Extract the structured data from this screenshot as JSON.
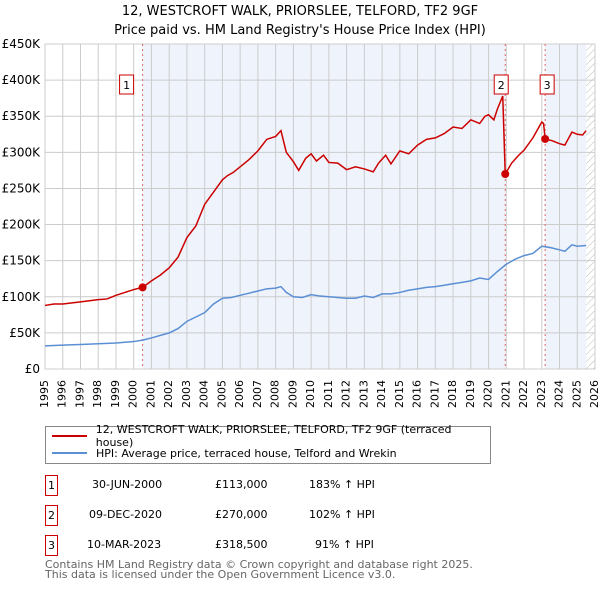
{
  "title": "12, WESTCROFT WALK, PRIORSLEE, TELFORD, TF2 9GF",
  "subtitle": "Price paid vs. HM Land Registry's House Price Index (HPI)",
  "chart_data": {
    "type": "line",
    "xlim": [
      1995,
      2026
    ],
    "ylim": [
      0,
      450000
    ],
    "yticks": [
      0,
      50000,
      100000,
      150000,
      200000,
      250000,
      300000,
      350000,
      400000,
      450000
    ],
    "ytick_labels": [
      "£0",
      "£50K",
      "£100K",
      "£150K",
      "£200K",
      "£250K",
      "£300K",
      "£350K",
      "£400K",
      "£450K"
    ],
    "xticks": [
      1995,
      1996,
      1997,
      1998,
      1999,
      2000,
      2001,
      2002,
      2003,
      2004,
      2005,
      2006,
      2007,
      2008,
      2009,
      2010,
      2011,
      2012,
      2013,
      2014,
      2015,
      2016,
      2017,
      2018,
      2019,
      2020,
      2021,
      2022,
      2023,
      2024,
      2025,
      2026
    ],
    "grid": true,
    "shaded_ranges": [
      [
        2000.5,
        2020.94
      ],
      [
        2023.19,
        2025.5
      ]
    ],
    "hatched_from": 2025.5,
    "series": [
      {
        "name": "12, WESTCROFT WALK, PRIORSLEE, TELFORD, TF2 9GF (terraced house)",
        "color": "#cc0000",
        "x": [
          1995,
          1995.5,
          1996,
          1997,
          1998,
          1998.5,
          1999,
          1999.5,
          2000,
          2000.5,
          2001,
          2001.5,
          2002,
          2002.5,
          2003,
          2003.5,
          2004,
          2004.5,
          2005,
          2005.3,
          2005.6,
          2006,
          2006.5,
          2007,
          2007.5,
          2008,
          2008.3,
          2008.6,
          2009,
          2009.3,
          2009.7,
          2010,
          2010.3,
          2010.7,
          2011,
          2011.5,
          2012,
          2012.5,
          2013,
          2013.5,
          2013.8,
          2014.2,
          2014.5,
          2015,
          2015.5,
          2016,
          2016.5,
          2017,
          2017.5,
          2018,
          2018.5,
          2019,
          2019.5,
          2019.8,
          2020,
          2020.3,
          2020.5,
          2020.8,
          2020.94,
          2021.3,
          2021.7,
          2022,
          2022.5,
          2023,
          2023.1,
          2023.19,
          2023.6,
          2024,
          2024.3,
          2024.7,
          2025,
          2025.3,
          2025.5
        ],
        "values": [
          88000,
          90000,
          90000,
          93000,
          96000,
          97000,
          102000,
          106000,
          110000,
          113000,
          122000,
          130000,
          140000,
          155000,
          182000,
          198000,
          228000,
          245000,
          262000,
          268000,
          272000,
          280000,
          290000,
          302000,
          318000,
          322000,
          330000,
          300000,
          287000,
          275000,
          292000,
          298000,
          288000,
          296000,
          286000,
          285000,
          276000,
          280000,
          277000,
          273000,
          285000,
          296000,
          284000,
          302000,
          298000,
          310000,
          318000,
          320000,
          326000,
          335000,
          333000,
          345000,
          340000,
          350000,
          352000,
          345000,
          360000,
          378000,
          270000,
          285000,
          296000,
          303000,
          320000,
          342000,
          340000,
          318500,
          316000,
          312000,
          310000,
          328000,
          325000,
          324000,
          330000
        ]
      },
      {
        "name": "HPI: Average price, terraced house, Telford and Wrekin",
        "color": "#5b8fd4",
        "x": [
          1995,
          1996,
          1997,
          1998,
          1999,
          2000,
          2000.5,
          2001,
          2002,
          2002.5,
          2003,
          2003.5,
          2004,
          2004.5,
          2005,
          2005.5,
          2006,
          2006.5,
          2007,
          2007.5,
          2008,
          2008.3,
          2008.6,
          2009,
          2009.5,
          2010,
          2010.5,
          2011,
          2011.5,
          2012,
          2012.5,
          2013,
          2013.5,
          2014,
          2014.5,
          2015,
          2015.5,
          2016,
          2016.5,
          2017,
          2017.5,
          2018,
          2018.5,
          2019,
          2019.5,
          2020,
          2020.5,
          2021,
          2021.5,
          2022,
          2022.5,
          2023,
          2023.5,
          2024,
          2024.3,
          2024.7,
          2025,
          2025.5
        ],
        "values": [
          32000,
          33000,
          34000,
          35000,
          36000,
          38000,
          40000,
          43000,
          50000,
          56000,
          66000,
          72000,
          78000,
          90000,
          98000,
          99000,
          102000,
          105000,
          108000,
          111000,
          112000,
          114000,
          106000,
          100000,
          99000,
          103000,
          101000,
          100000,
          99000,
          98000,
          98000,
          101000,
          99000,
          104000,
          104000,
          106000,
          109000,
          111000,
          113000,
          114000,
          116000,
          118000,
          120000,
          122000,
          126000,
          124000,
          135000,
          145000,
          152000,
          157000,
          160000,
          170000,
          168000,
          165000,
          163000,
          172000,
          170000,
          171000
        ]
      }
    ],
    "markers": [
      {
        "label": "1",
        "x": 2000.5,
        "y": 113000
      },
      {
        "label": "2",
        "x": 2020.94,
        "y": 270000
      },
      {
        "label": "3",
        "x": 2023.19,
        "y": 318500
      }
    ]
  },
  "legend": [
    {
      "label": "12, WESTCROFT WALK, PRIORSLEE, TELFORD, TF2 9GF (terraced house)",
      "color": "#cc0000"
    },
    {
      "label": "HPI: Average price, terraced house, Telford and Wrekin",
      "color": "#5b8fd4"
    }
  ],
  "transactions": [
    {
      "num": "1",
      "date": "30-JUN-2000",
      "price": "£113,000",
      "hpi": "183% ↑ HPI"
    },
    {
      "num": "2",
      "date": "09-DEC-2020",
      "price": "£270,000",
      "hpi": "102% ↑ HPI"
    },
    {
      "num": "3",
      "date": "10-MAR-2023",
      "price": "£318,500",
      "hpi": "91% ↑ HPI"
    }
  ],
  "footer": [
    "Contains HM Land Registry data © Crown copyright and database right 2025.",
    "This data is licensed under the Open Government Licence v3.0."
  ]
}
